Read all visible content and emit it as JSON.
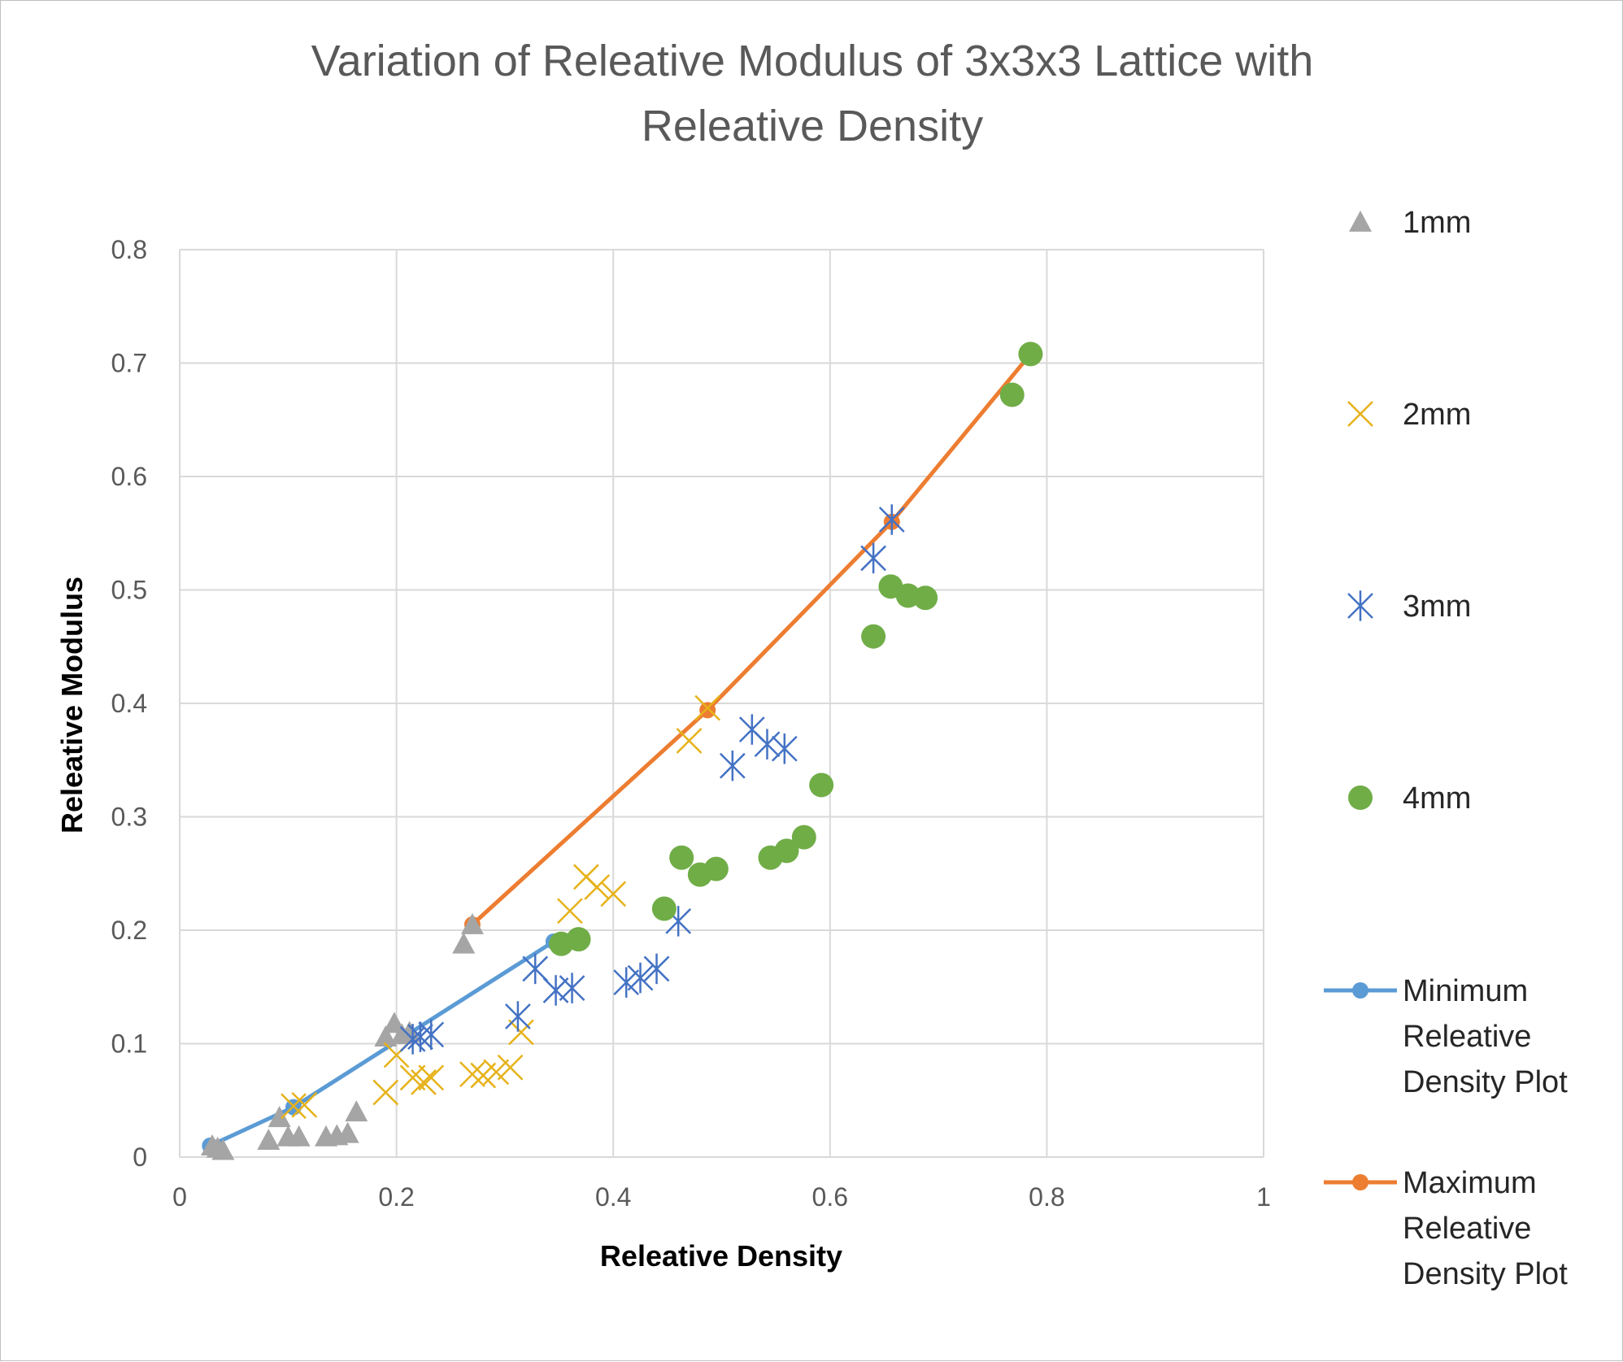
{
  "chart_data": {
    "type": "scatter",
    "title_lines": [
      "Variation of Releative Modulus of 3x3x3 Lattice with",
      "Releative Density"
    ],
    "xlabel": "Releative Density",
    "ylabel": "Releative Modulus",
    "xlim": [
      0,
      1
    ],
    "ylim": [
      0,
      0.8
    ],
    "x_ticks": [
      0,
      0.2,
      0.4,
      0.6,
      0.8,
      1
    ],
    "x_tick_labels": [
      "0",
      "0.2",
      "0.4",
      "0.6",
      "0.8",
      "1"
    ],
    "y_ticks": [
      0,
      0.1,
      0.2,
      0.3,
      0.4,
      0.5,
      0.6,
      0.7,
      0.8
    ],
    "y_tick_labels": [
      "0",
      "0.1",
      "0.2",
      "0.3",
      "0.4",
      "0.5",
      "0.6",
      "0.7",
      "0.8"
    ],
    "grid": true,
    "legend_position": "right",
    "series": [
      {
        "name": "1mm",
        "marker": "triangle",
        "color": "#a5a5a5",
        "points": [
          [
            0.03,
            0.01
          ],
          [
            0.035,
            0.008
          ],
          [
            0.04,
            0.006
          ],
          [
            0.082,
            0.015
          ],
          [
            0.092,
            0.035
          ],
          [
            0.1,
            0.018
          ],
          [
            0.11,
            0.018
          ],
          [
            0.135,
            0.018
          ],
          [
            0.145,
            0.019
          ],
          [
            0.155,
            0.021
          ],
          [
            0.163,
            0.04
          ],
          [
            0.19,
            0.106
          ],
          [
            0.198,
            0.118
          ],
          [
            0.205,
            0.108
          ],
          [
            0.212,
            0.11
          ],
          [
            0.262,
            0.188
          ],
          [
            0.27,
            0.205
          ]
        ]
      },
      {
        "name": "2mm",
        "marker": "x",
        "color": "#e6b219",
        "points": [
          [
            0.105,
            0.045
          ],
          [
            0.115,
            0.046
          ],
          [
            0.19,
            0.057
          ],
          [
            0.2,
            0.09
          ],
          [
            0.215,
            0.07
          ],
          [
            0.225,
            0.066
          ],
          [
            0.232,
            0.07
          ],
          [
            0.27,
            0.073
          ],
          [
            0.28,
            0.072
          ],
          [
            0.292,
            0.075
          ],
          [
            0.305,
            0.079
          ],
          [
            0.315,
            0.11
          ],
          [
            0.36,
            0.217
          ],
          [
            0.375,
            0.247
          ],
          [
            0.385,
            0.238
          ],
          [
            0.4,
            0.232
          ],
          [
            0.47,
            0.367
          ],
          [
            0.487,
            0.396
          ]
        ]
      },
      {
        "name": "3mm",
        "marker": "asterisk",
        "color": "#4472c4",
        "points": [
          [
            0.215,
            0.104
          ],
          [
            0.222,
            0.106
          ],
          [
            0.232,
            0.108
          ],
          [
            0.312,
            0.124
          ],
          [
            0.328,
            0.166
          ],
          [
            0.347,
            0.147
          ],
          [
            0.362,
            0.149
          ],
          [
            0.412,
            0.154
          ],
          [
            0.425,
            0.158
          ],
          [
            0.44,
            0.166
          ],
          [
            0.46,
            0.208
          ],
          [
            0.51,
            0.345
          ],
          [
            0.528,
            0.377
          ],
          [
            0.542,
            0.364
          ],
          [
            0.558,
            0.36
          ],
          [
            0.64,
            0.528
          ],
          [
            0.657,
            0.562
          ]
        ]
      },
      {
        "name": "4mm",
        "marker": "circle",
        "color": "#70ad47",
        "points": [
          [
            0.352,
            0.188
          ],
          [
            0.368,
            0.192
          ],
          [
            0.447,
            0.219
          ],
          [
            0.463,
            0.264
          ],
          [
            0.48,
            0.249
          ],
          [
            0.495,
            0.254
          ],
          [
            0.545,
            0.264
          ],
          [
            0.56,
            0.27
          ],
          [
            0.576,
            0.282
          ],
          [
            0.592,
            0.328
          ],
          [
            0.64,
            0.459
          ],
          [
            0.656,
            0.503
          ],
          [
            0.672,
            0.495
          ],
          [
            0.688,
            0.493
          ],
          [
            0.768,
            0.672
          ],
          [
            0.785,
            0.708
          ]
        ]
      },
      {
        "name": "Minimum Releative Density Plot",
        "marker": "line",
        "color": "#5b9bd5",
        "points": [
          [
            0.028,
            0.01
          ],
          [
            0.105,
            0.044
          ],
          [
            0.345,
            0.19
          ]
        ]
      },
      {
        "name": "Maximum Releative Density Plot",
        "marker": "line",
        "color": "#ed7d31",
        "points": [
          [
            0.27,
            0.205
          ],
          [
            0.487,
            0.394
          ],
          [
            0.657,
            0.56
          ],
          [
            0.785,
            0.708
          ]
        ]
      }
    ]
  }
}
